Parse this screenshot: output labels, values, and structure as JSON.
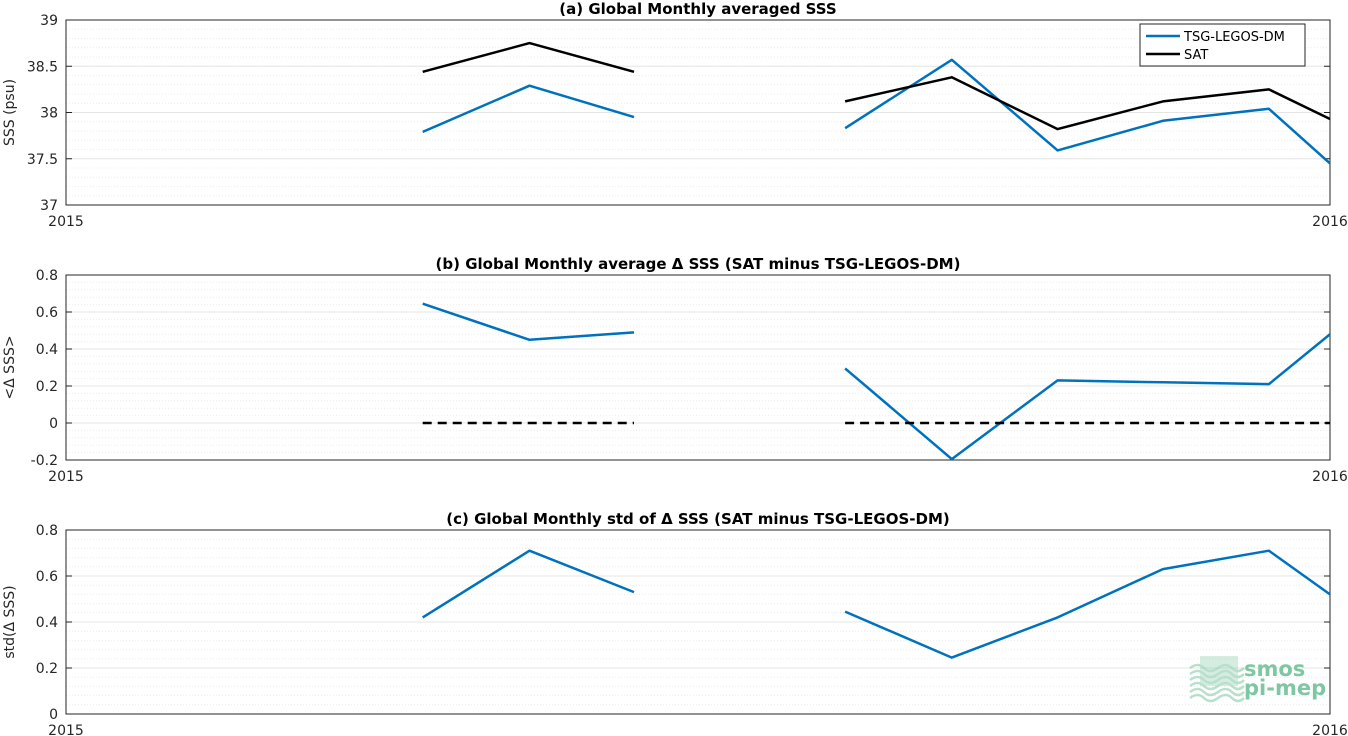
{
  "figure": {
    "watermark": {
      "line1": "smos",
      "line2": "pi-mep"
    }
  },
  "colors": {
    "tsg": "#0072bd",
    "sat": "#000000",
    "grid": "#e5e5e5",
    "axis": "#262626",
    "logo": "#7fc7a3"
  },
  "chart_data": [
    {
      "id": "a",
      "type": "line",
      "title": "(a) Global Monthly averaged SSS",
      "ylabel": "SSS (psu)",
      "xlim": [
        2015,
        2016
      ],
      "x_tick_labels": [
        "2015",
        "2016"
      ],
      "ylim": [
        37,
        39
      ],
      "y_ticks": [
        37,
        37.5,
        38,
        38.5,
        39
      ],
      "y_tick_labels": [
        "37",
        "37.5",
        "38",
        "38.5",
        "39"
      ],
      "grid": true,
      "legend": {
        "placement": "top-right",
        "entries": [
          "TSG-LEGOS-DM",
          "SAT"
        ]
      },
      "series": [
        {
          "name": "TSG-LEGOS-DM",
          "color": "#0072bd",
          "segments": [
            {
              "x": [
                2015.2822,
                2015.3667,
                2015.4494
              ],
              "y": [
                37.79,
                38.29,
                37.95
              ]
            },
            {
              "x": [
                2015.6164,
                2015.7008,
                2015.7845,
                2015.8678,
                2015.9517,
                2016.0
              ],
              "y": [
                37.83,
                38.57,
                37.59,
                37.91,
                38.04,
                37.45
              ]
            }
          ]
        },
        {
          "name": "SAT",
          "color": "#000000",
          "segments": [
            {
              "x": [
                2015.2822,
                2015.3667,
                2015.4494
              ],
              "y": [
                38.44,
                38.75,
                38.44
              ]
            },
            {
              "x": [
                2015.6164,
                2015.7008,
                2015.7845,
                2015.8678,
                2015.9517,
                2016.0
              ],
              "y": [
                38.12,
                38.38,
                37.82,
                38.12,
                38.25,
                37.93
              ]
            }
          ]
        }
      ]
    },
    {
      "id": "b",
      "type": "line",
      "title": "(b) Global Monthly average Δ SSS (SAT minus TSG-LEGOS-DM)",
      "ylabel": "<Δ SSS>",
      "xlim": [
        2015,
        2016
      ],
      "x_tick_labels": [
        "2015",
        "2016"
      ],
      "ylim": [
        -0.2,
        0.8
      ],
      "y_ticks": [
        -0.2,
        0,
        0.2,
        0.4,
        0.6,
        0.8
      ],
      "y_tick_labels": [
        "-0.2",
        "0",
        "0.2",
        "0.4",
        "0.6",
        "0.8"
      ],
      "grid": true,
      "series": [
        {
          "name": "Δ SSS",
          "color": "#0072bd",
          "segments": [
            {
              "x": [
                2015.2822,
                2015.3667,
                2015.4494
              ],
              "y": [
                0.645,
                0.45,
                0.49
              ]
            },
            {
              "x": [
                2015.6164,
                2015.7008,
                2015.7845,
                2015.8678,
                2015.9517,
                2016.0
              ],
              "y": [
                0.295,
                -0.195,
                0.23,
                0.22,
                0.21,
                0.48
              ]
            }
          ]
        },
        {
          "name": "zero reference",
          "color": "#000000",
          "dashed": true,
          "segments": [
            {
              "x": [
                2015.2822,
                2015.4494
              ],
              "y": [
                0,
                0
              ]
            },
            {
              "x": [
                2015.6164,
                2016.0
              ],
              "y": [
                0,
                0
              ]
            }
          ]
        }
      ]
    },
    {
      "id": "c",
      "type": "line",
      "title": "(c) Global Monthly std of Δ SSS (SAT minus TSG-LEGOS-DM)",
      "ylabel": "std(Δ SSS)",
      "xlim": [
        2015,
        2016
      ],
      "x_tick_labels": [
        "2015",
        "2016"
      ],
      "ylim": [
        0,
        0.8
      ],
      "y_ticks": [
        0,
        0.2,
        0.4,
        0.6,
        0.8
      ],
      "y_tick_labels": [
        "0",
        "0.2",
        "0.4",
        "0.6",
        "0.8"
      ],
      "grid": true,
      "series": [
        {
          "name": "std Δ SSS",
          "color": "#0072bd",
          "segments": [
            {
              "x": [
                2015.2822,
                2015.3667,
                2015.4494
              ],
              "y": [
                0.42,
                0.71,
                0.53
              ]
            },
            {
              "x": [
                2015.6164,
                2015.7008,
                2015.7845,
                2015.8678,
                2015.9517,
                2016.0
              ],
              "y": [
                0.445,
                0.245,
                0.42,
                0.63,
                0.71,
                0.52
              ]
            }
          ]
        }
      ]
    }
  ]
}
